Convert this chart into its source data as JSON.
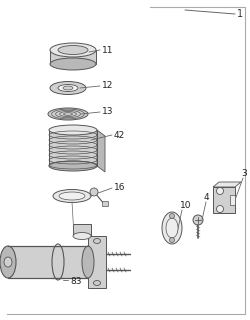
{
  "background_color": "#ffffff",
  "stroke": "#555555",
  "fill_light": "#e8e8e8",
  "fill_mid": "#d0d0d0",
  "fill_dark": "#b8b8b8",
  "figsize": [
    2.51,
    3.2
  ],
  "dpi": 100
}
